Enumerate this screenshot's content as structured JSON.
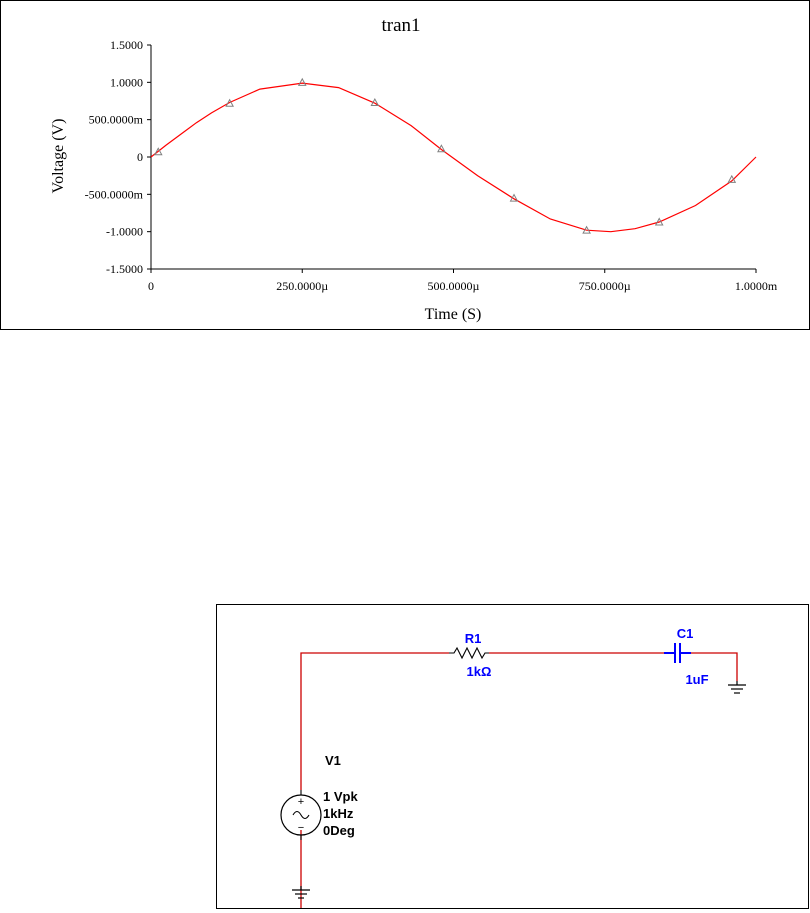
{
  "chart_data": {
    "type": "line",
    "title": "tran1",
    "xlabel": "Time (S)",
    "ylabel": "Voltage (V)",
    "xlim": [
      0,
      0.001
    ],
    "ylim": [
      -1.5,
      1.5
    ],
    "x_ticks": [
      {
        "value": 0,
        "label": "0"
      },
      {
        "value": 0.00025,
        "label": "250.0000µ"
      },
      {
        "value": 0.0005,
        "label": "500.0000µ"
      },
      {
        "value": 0.00075,
        "label": "750.0000µ"
      },
      {
        "value": 0.001,
        "label": "1.0000m"
      }
    ],
    "y_ticks": [
      {
        "value": 1.5,
        "label": "1.5000"
      },
      {
        "value": 1.0,
        "label": "1.0000"
      },
      {
        "value": 0.5,
        "label": "500.0000m"
      },
      {
        "value": 0,
        "label": "0"
      },
      {
        "value": -0.5,
        "label": "-500.0000m"
      },
      {
        "value": -1.0,
        "label": "-1.0000"
      },
      {
        "value": -1.5,
        "label": "-1.5000"
      }
    ],
    "grid": false,
    "series": [
      {
        "color": "#ff0000",
        "marker_color": "#808080",
        "x": [
          0,
          2.5e-05,
          5e-05,
          7.5e-05,
          0.0001,
          0.00013,
          0.00018,
          0.00025,
          0.00031,
          0.00037,
          0.00043,
          0.00048,
          0.00054,
          0.0006,
          0.00066,
          0.00072,
          0.00076,
          0.0008,
          0.00084,
          0.0009,
          0.00096,
          0.001
        ],
        "y": [
          0,
          0.16,
          0.31,
          0.46,
          0.59,
          0.73,
          0.91,
          0.99,
          0.93,
          0.72,
          0.42,
          0.1,
          -0.25,
          -0.56,
          -0.83,
          -0.98,
          -1.0,
          -0.96,
          -0.87,
          -0.65,
          -0.32,
          0.0
        ]
      }
    ],
    "markers": {
      "x": [
        1.2e-05,
        0.00013,
        0.00025,
        0.00037,
        0.00048,
        0.0006,
        0.00072,
        0.00084,
        0.00096
      ],
      "y": [
        0.07,
        0.72,
        1.0,
        0.73,
        0.11,
        -0.55,
        -0.98,
        -0.87,
        -0.3
      ]
    }
  },
  "schematic": {
    "resistor": {
      "ref": "R1",
      "value": "1kΩ"
    },
    "capacitor": {
      "ref": "C1",
      "value": "1uF"
    },
    "source": {
      "ref": "V1",
      "amplitude": "1 Vpk",
      "frequency": "1kHz",
      "phase": "0Deg"
    },
    "wire_color": "#cc0000",
    "component_color": "#0000ff"
  }
}
